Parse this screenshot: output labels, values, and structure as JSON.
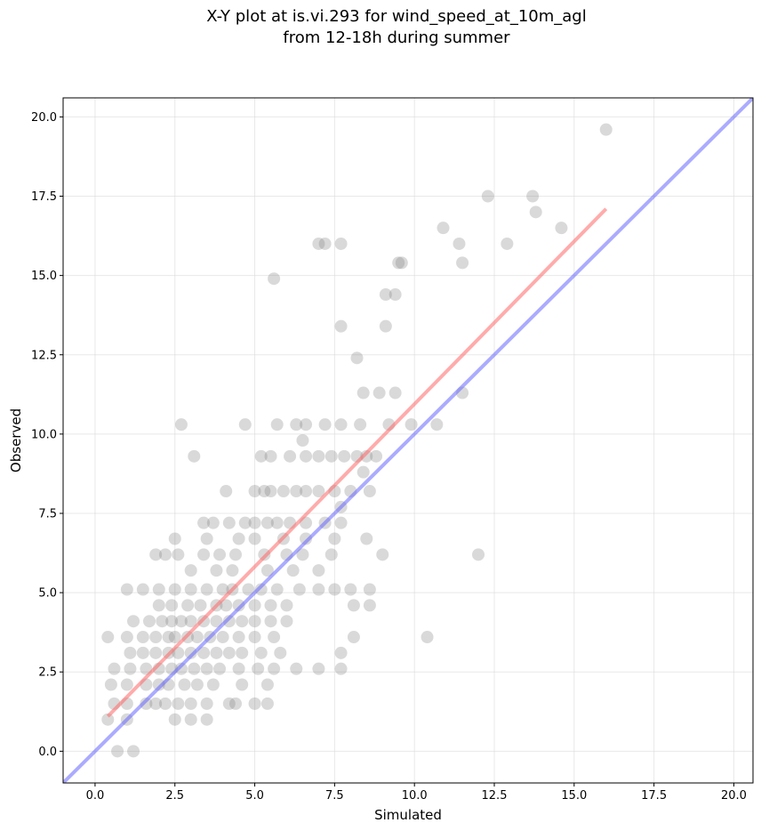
{
  "chart_data": {
    "type": "scatter",
    "title_lines": [
      "X-Y plot at is.vi.293 for wind_speed_at_10m_agl",
      "from 12-18h during summer"
    ],
    "xlabel": "Simulated",
    "ylabel": "Observed",
    "xlim": [
      -1.0,
      20.6
    ],
    "ylim": [
      -1.0,
      20.6
    ],
    "xticks": [
      "0.0",
      "2.5",
      "5.0",
      "7.5",
      "10.0",
      "12.5",
      "15.0",
      "17.5",
      "20.0"
    ],
    "yticks": [
      "0.0",
      "2.5",
      "5.0",
      "7.5",
      "10.0",
      "12.5",
      "15.0",
      "17.5",
      "20.0"
    ],
    "grid": true,
    "colors": {
      "points": "#808080",
      "fit_line": "#ff6666",
      "identity_line": "#6666ff"
    },
    "series": [
      {
        "type": "scatter",
        "points": [
          [
            16.0,
            19.6
          ],
          [
            12.3,
            17.5
          ],
          [
            13.7,
            17.5
          ],
          [
            13.8,
            17.0
          ],
          [
            7.0,
            16.0
          ],
          [
            7.2,
            16.0
          ],
          [
            7.7,
            16.0
          ],
          [
            10.9,
            16.5
          ],
          [
            11.4,
            16.0
          ],
          [
            12.9,
            16.0
          ],
          [
            14.6,
            16.5
          ],
          [
            9.5,
            15.4
          ],
          [
            9.6,
            15.4
          ],
          [
            11.5,
            15.4
          ],
          [
            5.6,
            14.9
          ],
          [
            9.1,
            14.4
          ],
          [
            9.4,
            14.4
          ],
          [
            7.7,
            13.4
          ],
          [
            9.1,
            13.4
          ],
          [
            8.2,
            12.4
          ],
          [
            8.4,
            11.3
          ],
          [
            8.9,
            11.3
          ],
          [
            9.4,
            11.3
          ],
          [
            11.5,
            11.3
          ],
          [
            2.7,
            10.3
          ],
          [
            4.7,
            10.3
          ],
          [
            5.7,
            10.3
          ],
          [
            6.3,
            10.3
          ],
          [
            6.6,
            10.3
          ],
          [
            7.2,
            10.3
          ],
          [
            7.7,
            10.3
          ],
          [
            8.3,
            10.3
          ],
          [
            9.2,
            10.3
          ],
          [
            9.9,
            10.3
          ],
          [
            10.7,
            10.3
          ],
          [
            6.5,
            9.8
          ],
          [
            3.1,
            9.3
          ],
          [
            5.2,
            9.3
          ],
          [
            5.5,
            9.3
          ],
          [
            6.1,
            9.3
          ],
          [
            6.6,
            9.3
          ],
          [
            7.0,
            9.3
          ],
          [
            7.4,
            9.3
          ],
          [
            7.8,
            9.3
          ],
          [
            8.2,
            9.3
          ],
          [
            8.5,
            9.3
          ],
          [
            8.8,
            9.3
          ],
          [
            8.4,
            8.8
          ],
          [
            4.1,
            8.2
          ],
          [
            5.0,
            8.2
          ],
          [
            5.3,
            8.2
          ],
          [
            5.5,
            8.2
          ],
          [
            5.9,
            8.2
          ],
          [
            6.3,
            8.2
          ],
          [
            6.6,
            8.2
          ],
          [
            7.0,
            8.2
          ],
          [
            7.5,
            8.2
          ],
          [
            8.0,
            8.2
          ],
          [
            8.6,
            8.2
          ],
          [
            7.7,
            7.7
          ],
          [
            3.4,
            7.2
          ],
          [
            3.7,
            7.2
          ],
          [
            4.2,
            7.2
          ],
          [
            4.7,
            7.2
          ],
          [
            5.0,
            7.2
          ],
          [
            5.4,
            7.2
          ],
          [
            5.7,
            7.2
          ],
          [
            6.1,
            7.2
          ],
          [
            6.6,
            7.2
          ],
          [
            7.2,
            7.2
          ],
          [
            7.7,
            7.2
          ],
          [
            2.5,
            6.7
          ],
          [
            3.5,
            6.7
          ],
          [
            4.5,
            6.7
          ],
          [
            5.0,
            6.7
          ],
          [
            5.9,
            6.7
          ],
          [
            6.6,
            6.7
          ],
          [
            7.5,
            6.7
          ],
          [
            8.5,
            6.7
          ],
          [
            3.0,
            5.7
          ],
          [
            3.8,
            5.7
          ],
          [
            4.3,
            5.7
          ],
          [
            5.4,
            5.7
          ],
          [
            6.2,
            5.7
          ],
          [
            7.0,
            5.7
          ],
          [
            1.9,
            6.2
          ],
          [
            2.2,
            6.2
          ],
          [
            2.6,
            6.2
          ],
          [
            3.4,
            6.2
          ],
          [
            3.9,
            6.2
          ],
          [
            4.4,
            6.2
          ],
          [
            5.3,
            6.2
          ],
          [
            6.0,
            6.2
          ],
          [
            6.5,
            6.2
          ],
          [
            7.4,
            6.2
          ],
          [
            9.0,
            6.2
          ],
          [
            12.0,
            6.2
          ],
          [
            1.0,
            5.1
          ],
          [
            1.5,
            5.1
          ],
          [
            2.0,
            5.1
          ],
          [
            2.5,
            5.1
          ],
          [
            3.0,
            5.1
          ],
          [
            3.5,
            5.1
          ],
          [
            4.0,
            5.1
          ],
          [
            4.3,
            5.1
          ],
          [
            4.8,
            5.1
          ],
          [
            5.2,
            5.1
          ],
          [
            5.7,
            5.1
          ],
          [
            6.4,
            5.1
          ],
          [
            7.0,
            5.1
          ],
          [
            7.5,
            5.1
          ],
          [
            8.0,
            5.1
          ],
          [
            8.6,
            5.1
          ],
          [
            2.0,
            4.6
          ],
          [
            2.4,
            4.6
          ],
          [
            2.9,
            4.6
          ],
          [
            3.3,
            4.6
          ],
          [
            3.8,
            4.6
          ],
          [
            4.1,
            4.6
          ],
          [
            4.5,
            4.6
          ],
          [
            5.0,
            4.6
          ],
          [
            5.5,
            4.6
          ],
          [
            6.0,
            4.6
          ],
          [
            8.1,
            4.6
          ],
          [
            8.6,
            4.6
          ],
          [
            1.2,
            4.1
          ],
          [
            1.7,
            4.1
          ],
          [
            2.1,
            4.1
          ],
          [
            2.4,
            4.1
          ],
          [
            2.7,
            4.1
          ],
          [
            3.0,
            4.1
          ],
          [
            3.4,
            4.1
          ],
          [
            3.8,
            4.1
          ],
          [
            4.2,
            4.1
          ],
          [
            4.6,
            4.1
          ],
          [
            5.0,
            4.1
          ],
          [
            5.5,
            4.1
          ],
          [
            6.0,
            4.1
          ],
          [
            0.4,
            3.6
          ],
          [
            1.0,
            3.6
          ],
          [
            1.5,
            3.6
          ],
          [
            1.9,
            3.6
          ],
          [
            2.3,
            3.6
          ],
          [
            2.5,
            3.6
          ],
          [
            2.9,
            3.6
          ],
          [
            3.2,
            3.6
          ],
          [
            3.6,
            3.6
          ],
          [
            4.0,
            3.6
          ],
          [
            4.5,
            3.6
          ],
          [
            5.0,
            3.6
          ],
          [
            5.6,
            3.6
          ],
          [
            8.1,
            3.6
          ],
          [
            10.4,
            3.6
          ],
          [
            1.1,
            3.1
          ],
          [
            1.5,
            3.1
          ],
          [
            1.9,
            3.1
          ],
          [
            2.3,
            3.1
          ],
          [
            2.6,
            3.1
          ],
          [
            3.0,
            3.1
          ],
          [
            3.4,
            3.1
          ],
          [
            3.8,
            3.1
          ],
          [
            4.2,
            3.1
          ],
          [
            4.6,
            3.1
          ],
          [
            5.2,
            3.1
          ],
          [
            5.8,
            3.1
          ],
          [
            7.7,
            3.1
          ],
          [
            0.6,
            2.6
          ],
          [
            1.1,
            2.6
          ],
          [
            1.6,
            2.6
          ],
          [
            2.0,
            2.6
          ],
          [
            2.4,
            2.6
          ],
          [
            2.7,
            2.6
          ],
          [
            3.1,
            2.6
          ],
          [
            3.5,
            2.6
          ],
          [
            3.9,
            2.6
          ],
          [
            4.5,
            2.6
          ],
          [
            5.1,
            2.6
          ],
          [
            5.6,
            2.6
          ],
          [
            6.3,
            2.6
          ],
          [
            7.0,
            2.6
          ],
          [
            7.7,
            2.6
          ],
          [
            0.5,
            2.1
          ],
          [
            1.0,
            2.1
          ],
          [
            1.6,
            2.1
          ],
          [
            2.0,
            2.1
          ],
          [
            2.3,
            2.1
          ],
          [
            2.8,
            2.1
          ],
          [
            3.2,
            2.1
          ],
          [
            3.7,
            2.1
          ],
          [
            4.6,
            2.1
          ],
          [
            5.4,
            2.1
          ],
          [
            0.6,
            1.5
          ],
          [
            1.0,
            1.5
          ],
          [
            1.6,
            1.5
          ],
          [
            1.9,
            1.5
          ],
          [
            2.2,
            1.5
          ],
          [
            2.6,
            1.5
          ],
          [
            3.0,
            1.5
          ],
          [
            3.5,
            1.5
          ],
          [
            4.2,
            1.5
          ],
          [
            4.4,
            1.5
          ],
          [
            5.0,
            1.5
          ],
          [
            5.4,
            1.5
          ],
          [
            0.4,
            1.0
          ],
          [
            1.0,
            1.0
          ],
          [
            2.5,
            1.0
          ],
          [
            3.0,
            1.0
          ],
          [
            3.5,
            1.0
          ],
          [
            0.7,
            0.0
          ],
          [
            1.2,
            0.0
          ]
        ]
      },
      {
        "type": "line",
        "role": "fit",
        "x": [
          0.4,
          16.0
        ],
        "y": [
          1.1,
          17.1
        ]
      },
      {
        "type": "line",
        "role": "identity",
        "x": [
          -1.0,
          20.6
        ],
        "y": [
          -1.0,
          20.6
        ]
      }
    ]
  }
}
